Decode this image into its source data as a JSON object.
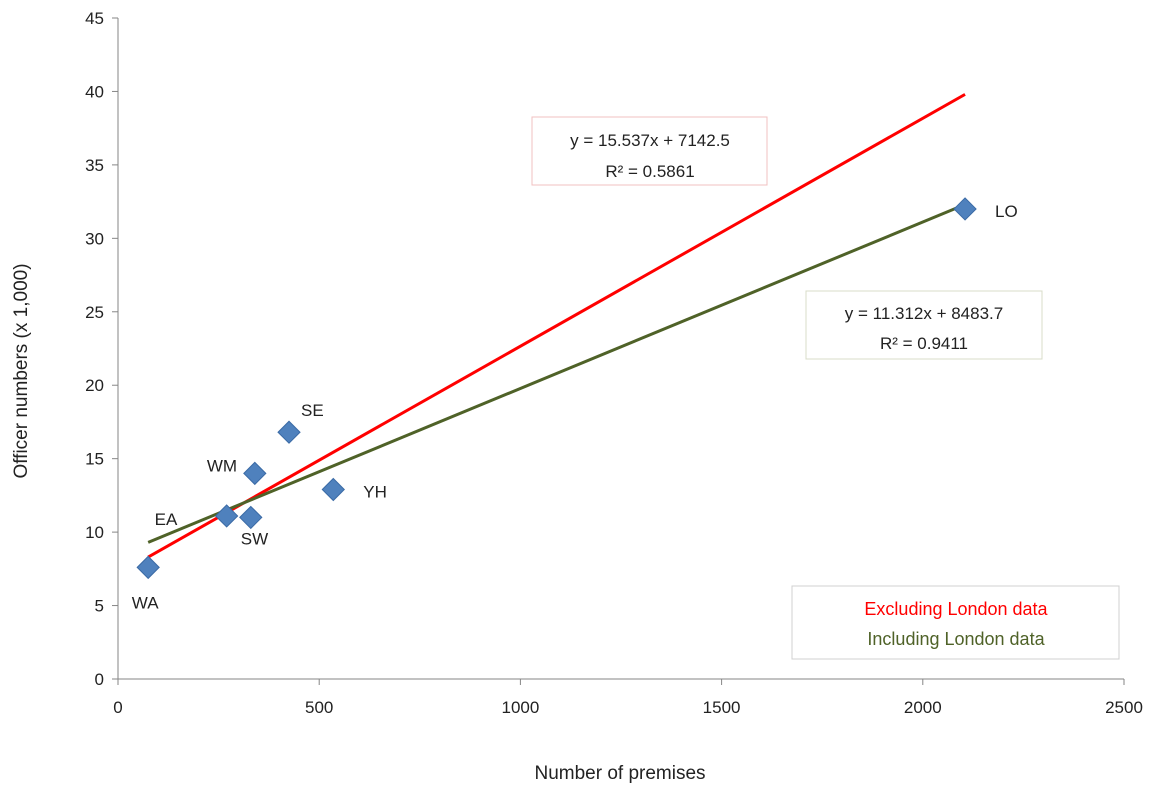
{
  "chart_data": {
    "type": "scatter",
    "title": "",
    "xlabel": "Number of premises",
    "ylabel": "Officer numbers  (x 1,000)",
    "xlim": [
      0,
      2500
    ],
    "ylim": [
      0,
      45
    ],
    "x_ticks": [
      0,
      500,
      1000,
      1500,
      2000,
      2500
    ],
    "y_ticks": [
      0,
      5,
      10,
      15,
      20,
      25,
      30,
      35,
      40,
      45
    ],
    "grid": false,
    "marker_color": "#4f81bd",
    "points": [
      {
        "label": "WA",
        "x": 75,
        "y": 7.6
      },
      {
        "label": "EA",
        "x": 270,
        "y": 11.1
      },
      {
        "label": "SW",
        "x": 330,
        "y": 11.0
      },
      {
        "label": "WM",
        "x": 340,
        "y": 14.0
      },
      {
        "label": "SE",
        "x": 425,
        "y": 16.8
      },
      {
        "label": "YH",
        "x": 535,
        "y": 12.9
      },
      {
        "label": "LO",
        "x": 2105,
        "y": 32.0
      }
    ],
    "trendlines": [
      {
        "name": "Excluding London data",
        "color": "#ff0000",
        "x_range": [
          75,
          2105
        ],
        "y_range": [
          8.3,
          39.8
        ],
        "equation": "y = 15.537x + 7142.5",
        "r2": "R² = 0.5861"
      },
      {
        "name": "Including London data",
        "color": "#4f6228",
        "x_range": [
          75,
          2105
        ],
        "y_range": [
          9.3,
          32.3
        ],
        "equation": "y = 11.312x + 8483.7",
        "r2": "R² = 0.9411"
      }
    ],
    "legend_placement": "bottom-right"
  }
}
